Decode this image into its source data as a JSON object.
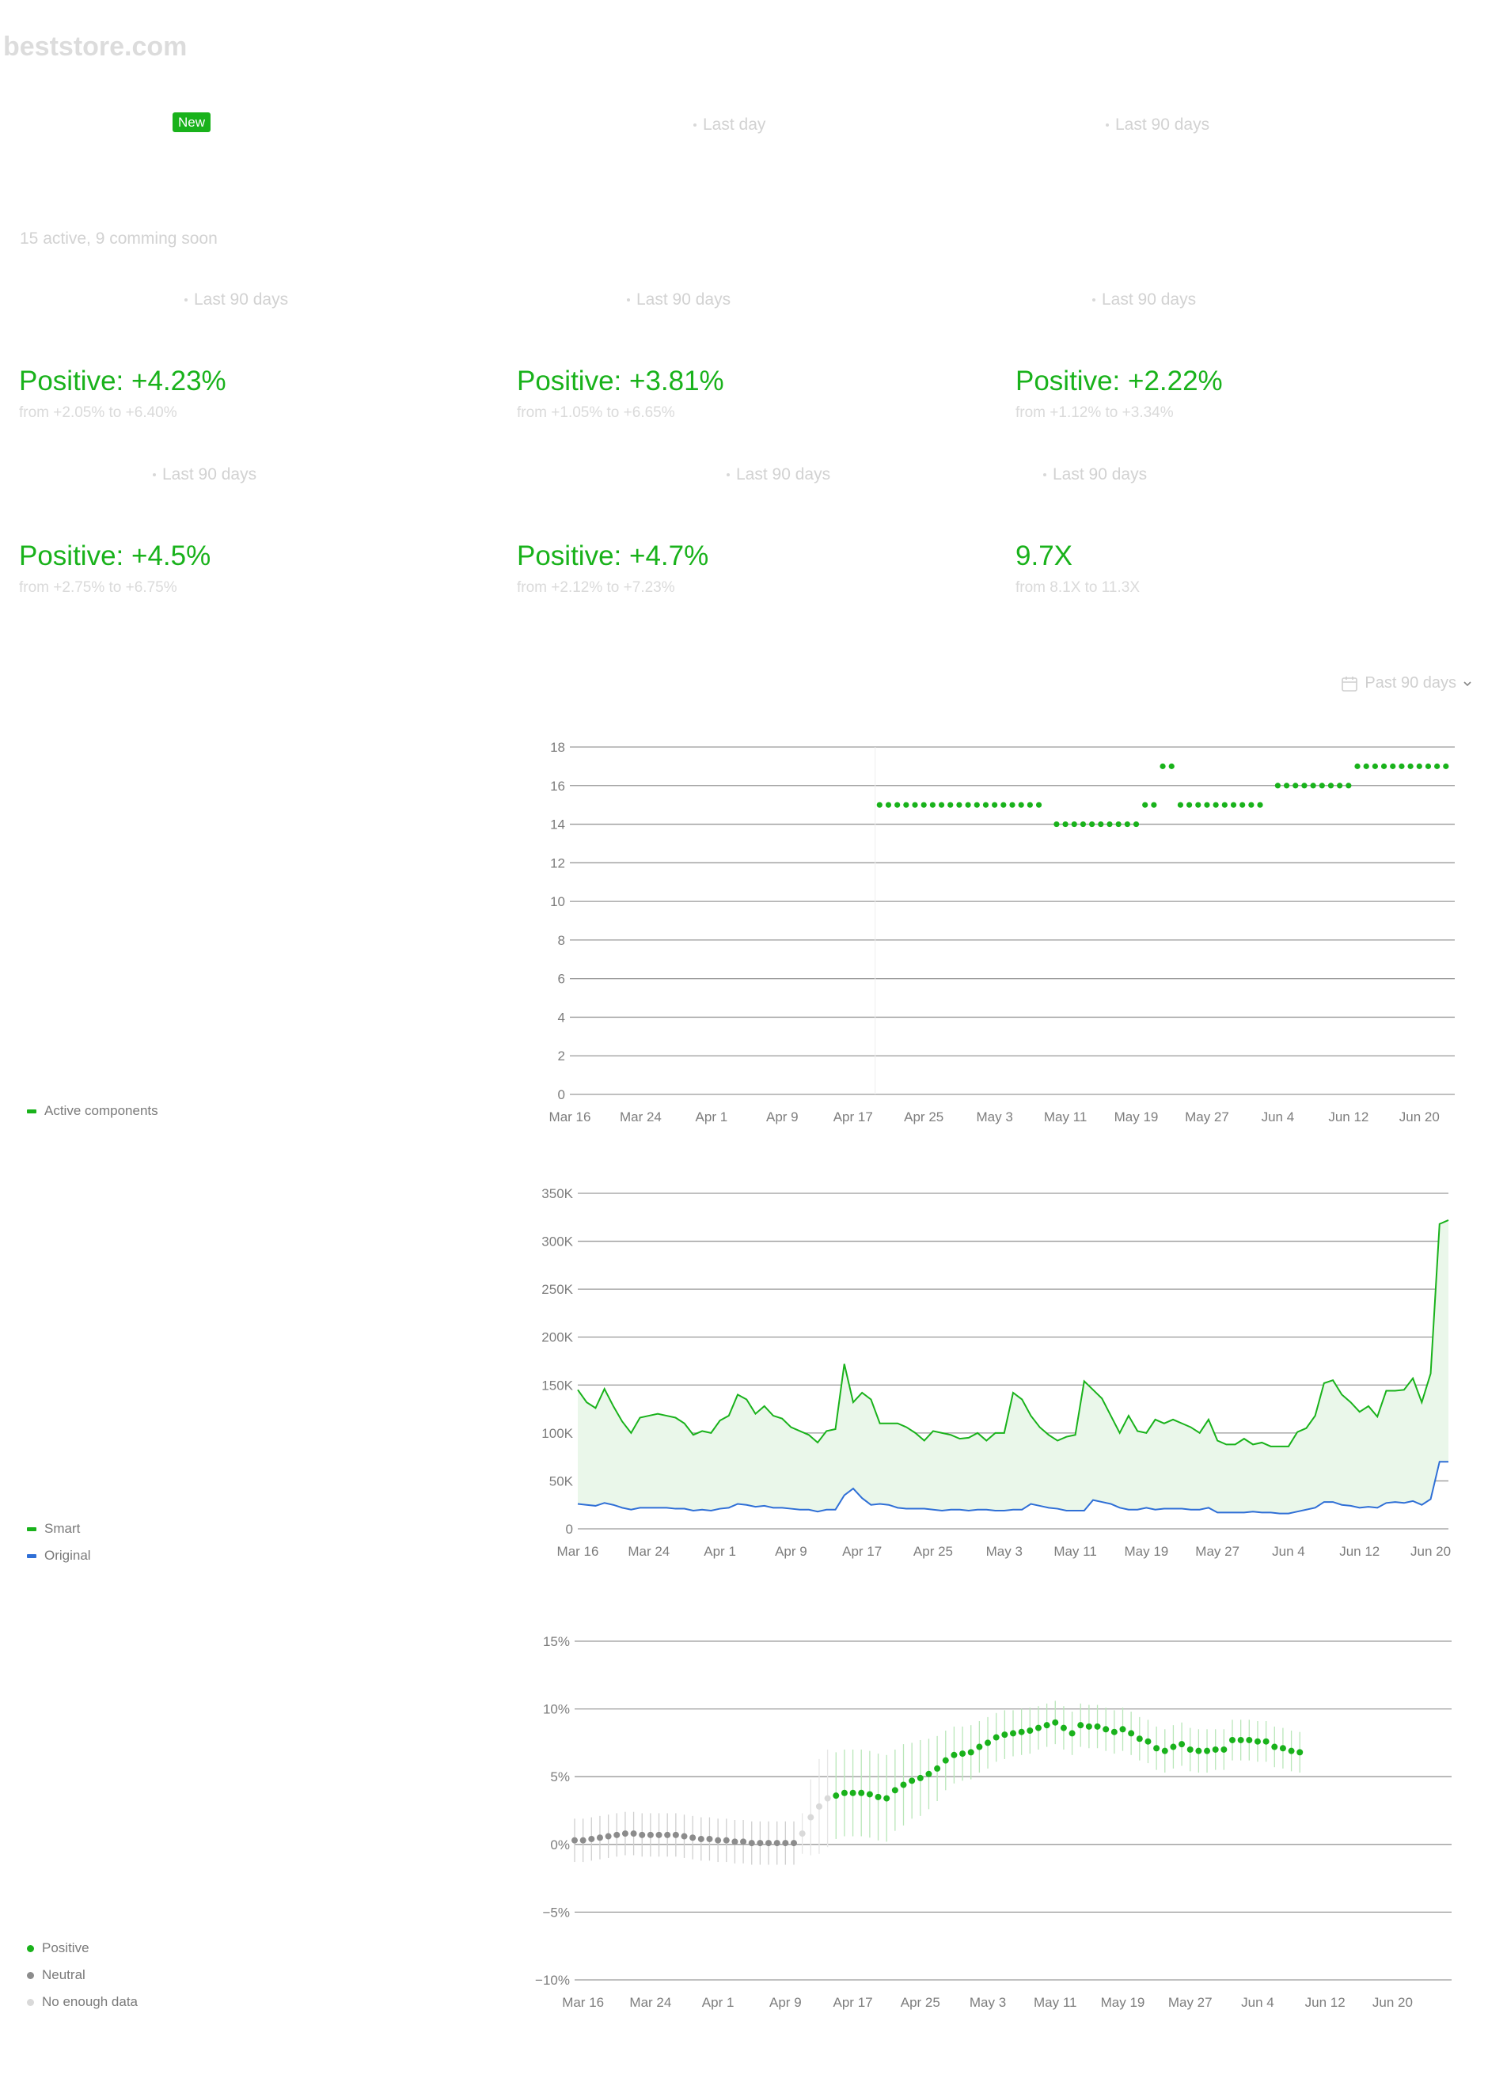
{
  "brand": "beststore.com",
  "top_row": {
    "badge": "New",
    "col2": "Last day",
    "col3": "Last 90 days"
  },
  "summary_text": "15 active, 9 comming soon",
  "metrics": [
    {
      "period": "Last 90 days",
      "value": "Positive: +4.23%",
      "range": "from +2.05% to +6.40%"
    },
    {
      "period": "Last 90 days",
      "value": "Positive: +3.81%",
      "range": "from +1.05% to +6.65%"
    },
    {
      "period": "Last 90 days",
      "value": "Positive: +2.22%",
      "range": "from +1.12% to +3.34%"
    },
    {
      "period": "Last 90 days",
      "value": "Positive: +4.5%",
      "range": "from +2.75% to +6.75%"
    },
    {
      "period": "Last 90 days",
      "value": "Positive: +4.7%",
      "range": "from +2.12% to +7.23%"
    },
    {
      "period": "Last 90 days",
      "value": "9.7X",
      "range": "from 8.1X to 11.3X"
    }
  ],
  "date_range": {
    "label": "Past 90 days",
    "icon": "calendar-icon"
  },
  "colors": {
    "green": "#19b21b",
    "blue": "#2f6fd6",
    "gray": "#8c8c8c",
    "lightgray": "#d9d9d9",
    "grid": "#9a9a9a"
  },
  "chart_data": [
    {
      "type": "scatter",
      "id": "components",
      "legend": [
        "Active components"
      ],
      "yticks": [
        "0",
        "2",
        "4",
        "6",
        "8",
        "10",
        "12",
        "14",
        "16",
        "18"
      ],
      "ylim": [
        0,
        18
      ],
      "xticks": [
        "Mar 16",
        "Mar 24",
        "Apr 1",
        "Apr 9",
        "Apr 17",
        "Apr 25",
        "May 3",
        "May 11",
        "May 19",
        "May 27",
        "Jun 4",
        "Jun 12",
        "Jun 20"
      ],
      "xlim": [
        "Mar 16",
        "Jun 24"
      ],
      "series": [
        {
          "name": "Active components",
          "x_start": "Apr 20",
          "x_end": "Jun 23",
          "values": [
            15,
            15,
            15,
            15,
            15,
            15,
            15,
            15,
            15,
            15,
            15,
            15,
            15,
            15,
            15,
            15,
            15,
            15,
            15,
            null,
            14,
            14,
            14,
            14,
            14,
            14,
            14,
            14,
            14,
            14,
            15,
            15,
            17,
            17,
            15,
            15,
            15,
            15,
            15,
            15,
            15,
            15,
            15,
            15,
            null,
            16,
            16,
            16,
            16,
            16,
            16,
            16,
            16,
            16,
            17,
            17,
            17,
            17,
            17,
            17,
            17,
            17,
            17,
            17,
            17
          ]
        }
      ]
    },
    {
      "type": "area",
      "id": "traffic",
      "legend": [
        "Smart",
        "Original"
      ],
      "yticks": [
        "0",
        "50K",
        "100K",
        "150K",
        "200K",
        "250K",
        "300K",
        "350K"
      ],
      "ylim": [
        0,
        350000
      ],
      "xticks": [
        "Mar 16",
        "Mar 24",
        "Apr 1",
        "Apr 9",
        "Apr 17",
        "Apr 25",
        "May 3",
        "May 11",
        "May 19",
        "May 27",
        "Jun 4",
        "Jun 12",
        "Jun 20"
      ],
      "xlim": [
        "Mar 16",
        "Jun 22"
      ],
      "series": [
        {
          "name": "Smart",
          "x_start": "Mar 16",
          "values": [
            145000,
            132000,
            126000,
            146000,
            128000,
            112000,
            100000,
            116000,
            118000,
            120000,
            118000,
            116000,
            110000,
            98000,
            102000,
            100000,
            113000,
            118000,
            140000,
            135000,
            120000,
            128000,
            118000,
            115000,
            106000,
            102000,
            98000,
            90000,
            102000,
            104000,
            172000,
            132000,
            142000,
            135000,
            110000,
            110000,
            110000,
            106000,
            100000,
            92000,
            102000,
            100000,
            98000,
            94000,
            95000,
            100000,
            92000,
            100000,
            100000,
            142000,
            135000,
            118000,
            106000,
            98000,
            92000,
            96000,
            98000,
            154000,
            145000,
            136000,
            118000,
            100000,
            118000,
            102000,
            100000,
            114000,
            110000,
            114000,
            110000,
            106000,
            100000,
            114000,
            92000,
            88000,
            88000,
            94000,
            88000,
            90000,
            86000,
            86000,
            86000,
            101000,
            105000,
            118000,
            152000,
            155000,
            140000,
            132000,
            122000,
            128000,
            117000,
            144000,
            144000,
            145000,
            157000,
            132000,
            162000,
            318000,
            322000
          ]
        },
        {
          "name": "Original",
          "x_start": "Mar 16",
          "values": [
            26000,
            25000,
            24000,
            27000,
            25000,
            22000,
            20000,
            22000,
            22000,
            22000,
            22000,
            21000,
            21000,
            19000,
            20000,
            19000,
            21000,
            22000,
            26000,
            25000,
            23000,
            24000,
            22000,
            22000,
            21000,
            20000,
            20000,
            18000,
            20000,
            20000,
            35000,
            42000,
            32000,
            25000,
            26000,
            25000,
            22000,
            21000,
            21000,
            21000,
            20000,
            19000,
            20000,
            20000,
            19000,
            20000,
            20000,
            19000,
            19000,
            20000,
            20000,
            26000,
            24000,
            22000,
            21000,
            19000,
            19000,
            19000,
            30000,
            28000,
            26000,
            22000,
            20000,
            20000,
            22000,
            20000,
            21000,
            21000,
            21000,
            20000,
            20000,
            22000,
            17000,
            17000,
            17000,
            17000,
            18000,
            17000,
            17000,
            16000,
            16000,
            18000,
            20000,
            22000,
            28000,
            28000,
            25000,
            24000,
            22000,
            23000,
            22000,
            27000,
            28000,
            27000,
            29000,
            25000,
            31000,
            70000,
            70000
          ]
        }
      ]
    },
    {
      "type": "scatter",
      "id": "uplift",
      "legend": [
        "Positive",
        "Neutral",
        "No enough data"
      ],
      "yticks": [
        "−10%",
        "−5%",
        "0%",
        "5%",
        "10%",
        "15%"
      ],
      "ylim": [
        -10,
        15
      ],
      "xticks": [
        "Mar 16",
        "Mar 24",
        "Apr 1",
        "Apr 9",
        "Apr 17",
        "Apr 25",
        "May 3",
        "May 11",
        "May 19",
        "May 27",
        "Jun 4",
        "Jun 12",
        "Jun 20"
      ],
      "xlim": [
        "Mar 15",
        "Jun 27"
      ],
      "series": [
        {
          "name": "Neutral",
          "x_start": "Mar 15",
          "values": [
            0.3,
            0.3,
            0.4,
            0.5,
            0.6,
            0.7,
            0.8,
            0.8,
            0.7,
            0.7,
            0.7,
            0.7,
            0.7,
            0.6,
            0.5,
            0.4,
            0.4,
            0.3,
            0.3,
            0.2,
            0.2,
            0.1,
            0.1,
            0.1,
            0.1,
            0.1,
            0.1
          ],
          "err": [
            1.6,
            1.6,
            1.6,
            1.6,
            1.6,
            1.6,
            1.6,
            1.6,
            1.6,
            1.6,
            1.6,
            1.6,
            1.6,
            1.6,
            1.6,
            1.6,
            1.6,
            1.6,
            1.6,
            1.6,
            1.6,
            1.6,
            1.6,
            1.6,
            1.6,
            1.6,
            1.6
          ]
        },
        {
          "name": "No enough data",
          "x_start": "Apr 11",
          "values": [
            0.8,
            2.0,
            2.8,
            3.4
          ],
          "err": [
            1.5,
            2.8,
            3.5,
            3.6
          ]
        },
        {
          "name": "Positive",
          "x_start": "Apr 15",
          "values": [
            3.6,
            3.8,
            3.8,
            3.8,
            3.7,
            3.5,
            3.4,
            4.0,
            4.4,
            4.7,
            4.9,
            5.2,
            5.6,
            6.2,
            6.6,
            6.7,
            6.8,
            7.2,
            7.5,
            7.9,
            8.1,
            8.2,
            8.3,
            8.4,
            8.6,
            8.8,
            9.0,
            8.6,
            8.2,
            8.8,
            8.7,
            8.7,
            8.5,
            8.3,
            8.5,
            8.2,
            7.8,
            7.6,
            7.1,
            6.9,
            7.2,
            7.4,
            7.0,
            6.9,
            6.9,
            7.0,
            7.0,
            7.7,
            7.7,
            7.7,
            7.6,
            7.6,
            7.2,
            7.1,
            6.9,
            6.8
          ],
          "err": [
            3.2,
            3.2,
            3.2,
            3.2,
            3.2,
            3.2,
            3.2,
            3.0,
            3.0,
            2.8,
            2.8,
            2.6,
            2.4,
            2.2,
            2.1,
            2.0,
            2.0,
            1.9,
            1.9,
            1.8,
            1.8,
            1.7,
            1.7,
            1.7,
            1.6,
            1.6,
            1.6,
            1.6,
            1.6,
            1.6,
            1.6,
            1.6,
            1.6,
            1.6,
            1.6,
            1.6,
            1.6,
            1.6,
            1.6,
            1.6,
            1.6,
            1.6,
            1.6,
            1.6,
            1.6,
            1.5,
            1.5,
            1.5,
            1.5,
            1.5,
            1.5,
            1.5,
            1.5,
            1.5,
            1.5,
            1.5
          ]
        }
      ]
    }
  ]
}
